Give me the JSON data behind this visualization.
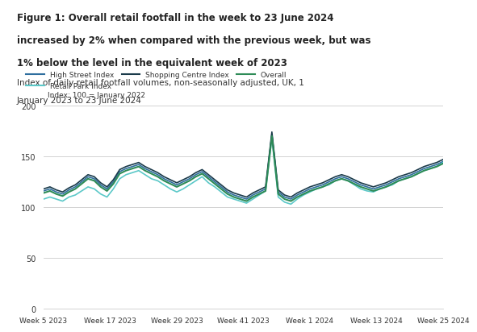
{
  "title_line1": "Figure 1: Overall retail footfall in the week to 23 June 2024",
  "title_line2": "increased by 2% when compared with the previous week, but was",
  "title_line3": "1% below the level in the equivalent week of 2023",
  "subtitle_line1": "Index of daily retail footfall volumes, non-seasonally adjusted, UK, 1",
  "subtitle_line2": "January 2023 to 23 June 2024",
  "axis_note": "Index: 100 = January 2022",
  "ylim": [
    0,
    200
  ],
  "yticks": [
    0,
    50,
    100,
    150,
    200
  ],
  "xtick_labels": [
    "Week 5 2023",
    "Week 17 2023",
    "Week 29 2023",
    "Week 41 2023",
    "Week 1 2024",
    "Week 13 2024",
    "Week 25 2024"
  ],
  "colors": {
    "high_street": "#2E6E9E",
    "retail_park": "#5BC8C8",
    "shopping_centre": "#1A3A4A",
    "overall": "#2E8B57"
  },
  "legend_labels": [
    "High Street Index",
    "Retail Park Index",
    "Shopping Centre Index",
    "Overall"
  ],
  "background": "#FFFFFF",
  "high_street": [
    116,
    118,
    115,
    113,
    117,
    120,
    125,
    130,
    128,
    122,
    118,
    125,
    135,
    138,
    140,
    142,
    138,
    135,
    132,
    128,
    125,
    122,
    125,
    128,
    132,
    135,
    130,
    125,
    120,
    115,
    112,
    110,
    108,
    112,
    115,
    118,
    172,
    115,
    110,
    108,
    112,
    115,
    118,
    120,
    122,
    125,
    128,
    130,
    128,
    125,
    122,
    120,
    118,
    120,
    122,
    125,
    128,
    130,
    132,
    135,
    138,
    140,
    142,
    145
  ],
  "retail_park": [
    108,
    110,
    108,
    106,
    110,
    112,
    116,
    120,
    118,
    113,
    110,
    118,
    128,
    132,
    134,
    136,
    132,
    128,
    126,
    122,
    118,
    115,
    118,
    122,
    126,
    130,
    124,
    120,
    115,
    110,
    108,
    106,
    104,
    108,
    112,
    116,
    168,
    110,
    105,
    103,
    108,
    112,
    115,
    118,
    120,
    122,
    126,
    128,
    126,
    122,
    118,
    116,
    115,
    118,
    120,
    122,
    126,
    128,
    130,
    133,
    136,
    138,
    140,
    144
  ],
  "shopping_centre": [
    118,
    120,
    117,
    115,
    119,
    122,
    127,
    132,
    130,
    124,
    120,
    127,
    137,
    140,
    142,
    144,
    140,
    137,
    134,
    130,
    127,
    124,
    127,
    130,
    134,
    137,
    132,
    127,
    122,
    117,
    114,
    112,
    110,
    114,
    117,
    120,
    174,
    117,
    112,
    110,
    114,
    117,
    120,
    122,
    124,
    127,
    130,
    132,
    130,
    127,
    124,
    122,
    120,
    122,
    124,
    127,
    130,
    132,
    134,
    137,
    140,
    142,
    144,
    147
  ],
  "overall": [
    114,
    116,
    113,
    111,
    115,
    118,
    123,
    128,
    126,
    120,
    116,
    123,
    133,
    136,
    138,
    140,
    136,
    133,
    130,
    126,
    123,
    120,
    123,
    126,
    130,
    133,
    128,
    123,
    118,
    113,
    110,
    108,
    106,
    110,
    113,
    116,
    170,
    113,
    108,
    106,
    110,
    113,
    116,
    118,
    120,
    123,
    126,
    128,
    126,
    123,
    120,
    118,
    116,
    118,
    120,
    123,
    126,
    128,
    130,
    133,
    136,
    138,
    140,
    143
  ]
}
